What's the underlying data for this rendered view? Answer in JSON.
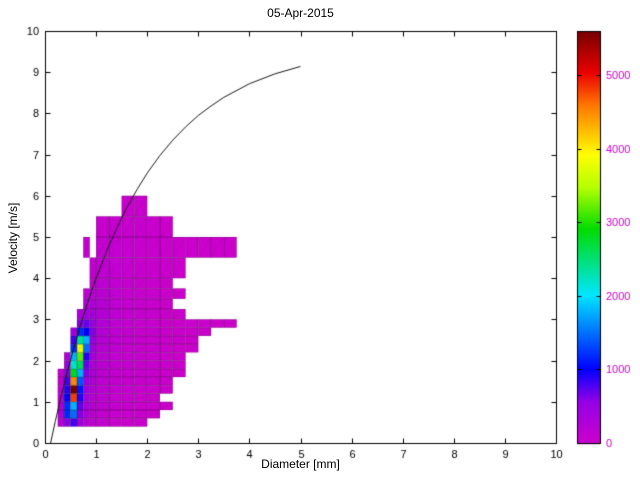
{
  "chart_data": {
    "type": "heatmap",
    "title": "05-Apr-2015",
    "xlabel": "Diameter [mm]",
    "ylabel": "Velocity [m/s]",
    "xlim": [
      0,
      10
    ],
    "ylim": [
      0,
      10
    ],
    "xticks": [
      0,
      1,
      2,
      3,
      4,
      5,
      6,
      7,
      8,
      9,
      10
    ],
    "yticks": [
      0,
      1,
      2,
      3,
      4,
      5,
      6,
      7,
      8,
      9,
      10
    ],
    "grid": false,
    "legend": "none",
    "colorbar": {
      "position": "right",
      "vmin": 0,
      "vmax": 5600,
      "ticks": [
        0,
        1000,
        2000,
        3000,
        4000,
        5000
      ],
      "colormap_stops": [
        [
          0.0,
          204,
          0,
          204
        ],
        [
          0.1,
          150,
          0,
          230
        ],
        [
          0.18,
          0,
          0,
          255
        ],
        [
          0.36,
          0,
          230,
          255
        ],
        [
          0.52,
          0,
          220,
          0
        ],
        [
          0.62,
          180,
          255,
          0
        ],
        [
          0.7,
          255,
          255,
          0
        ],
        [
          0.82,
          255,
          120,
          0
        ],
        [
          0.9,
          235,
          0,
          0
        ],
        [
          1.0,
          120,
          0,
          0
        ]
      ],
      "cell_edge_color": "rgba(0,0,0,0.35)",
      "cell_diag_color": "rgba(0,0,0,0.12)"
    },
    "heatmap": {
      "x_edges": [
        0.25,
        0.375,
        0.5,
        0.625,
        0.75,
        0.875,
        1.0,
        1.25,
        1.5,
        1.75,
        2.0,
        2.25,
        2.5,
        2.75,
        3.0,
        3.25,
        3.5,
        3.75
      ],
      "y_edges": [
        0.4,
        0.6,
        0.8,
        1.0,
        1.2,
        1.4,
        1.6,
        1.8,
        2.0,
        2.2,
        2.4,
        2.6,
        2.8,
        3.0,
        3.25,
        3.5,
        3.75,
        4.0,
        4.5,
        5.0,
        5.5,
        6.0
      ],
      "counts": [
        [
          200,
          600,
          800,
          400,
          200,
          120,
          80,
          40,
          25,
          15,
          0,
          0,
          0,
          0,
          0,
          0,
          0
        ],
        [
          300,
          1200,
          1500,
          600,
          300,
          150,
          100,
          60,
          35,
          20,
          12,
          0,
          0,
          0,
          0,
          0,
          0
        ],
        [
          250,
          1200,
          1800,
          700,
          350,
          180,
          120,
          70,
          40,
          25,
          15,
          10,
          0,
          0,
          0,
          0,
          0
        ],
        [
          200,
          1000,
          4800,
          900,
          400,
          200,
          130,
          80,
          50,
          30,
          18,
          0,
          0,
          0,
          0,
          0,
          0
        ],
        [
          150,
          900,
          5600,
          1100,
          450,
          220,
          140,
          90,
          55,
          35,
          20,
          12,
          0,
          0,
          0,
          0,
          0
        ],
        [
          100,
          800,
          4500,
          1400,
          500,
          250,
          150,
          95,
          60,
          40,
          25,
          14,
          0,
          0,
          0,
          0,
          0
        ],
        [
          60,
          600,
          2800,
          1800,
          600,
          280,
          160,
          100,
          65,
          45,
          30,
          16,
          10,
          0,
          0,
          0,
          0
        ],
        [
          0,
          400,
          2200,
          2600,
          700,
          300,
          170,
          105,
          70,
          48,
          32,
          20,
          12,
          0,
          0,
          0,
          0
        ],
        [
          0,
          250,
          1800,
          3200,
          900,
          350,
          180,
          110,
          72,
          50,
          34,
          22,
          13,
          0,
          0,
          0,
          0
        ],
        [
          0,
          0,
          1200,
          3800,
          1500,
          400,
          200,
          120,
          75,
          52,
          35,
          24,
          15,
          10,
          0,
          0,
          0
        ],
        [
          0,
          0,
          800,
          2400,
          1800,
          500,
          220,
          130,
          80,
          55,
          36,
          25,
          16,
          10,
          0,
          0,
          0
        ],
        [
          0,
          0,
          400,
          1200,
          1000,
          600,
          240,
          140,
          85,
          57,
          38,
          26,
          17,
          12,
          8,
          0,
          0
        ],
        [
          0,
          0,
          0,
          600,
          700,
          500,
          260,
          150,
          90,
          60,
          40,
          27,
          18,
          12,
          10,
          8,
          6
        ],
        [
          0,
          0,
          0,
          300,
          400,
          350,
          250,
          140,
          85,
          58,
          38,
          26,
          17,
          0,
          0,
          0,
          0
        ],
        [
          0,
          0,
          0,
          0,
          250,
          280,
          220,
          130,
          80,
          55,
          36,
          24,
          0,
          0,
          0,
          0,
          0
        ],
        [
          0,
          0,
          0,
          0,
          150,
          200,
          180,
          120,
          75,
          50,
          33,
          22,
          14,
          0,
          0,
          0,
          0
        ],
        [
          0,
          0,
          0,
          0,
          0,
          120,
          150,
          110,
          70,
          48,
          30,
          20,
          0,
          0,
          0,
          0,
          0
        ],
        [
          0,
          0,
          0,
          0,
          0,
          80,
          120,
          100,
          65,
          45,
          28,
          18,
          12,
          0,
          0,
          0,
          0
        ],
        [
          0,
          0,
          0,
          0,
          60,
          0,
          80,
          90,
          60,
          42,
          26,
          17,
          11,
          9,
          8,
          7,
          6
        ],
        [
          0,
          0,
          0,
          0,
          0,
          0,
          50,
          70,
          50,
          38,
          22,
          14,
          0,
          0,
          0,
          0,
          0
        ],
        [
          0,
          0,
          0,
          0,
          0,
          0,
          0,
          0,
          40,
          30,
          0,
          0,
          0,
          0,
          0,
          0,
          0
        ]
      ]
    },
    "curve": {
      "name": "terminal-velocity-curve",
      "color": "#1a1a1a",
      "x": [
        0.11,
        0.2,
        0.3,
        0.4,
        0.5,
        0.6,
        0.7,
        0.8,
        0.9,
        1.0,
        1.2,
        1.4,
        1.6,
        1.8,
        2.0,
        2.25,
        2.5,
        2.75,
        3.0,
        3.25,
        3.5,
        4.0,
        4.5,
        5.0
      ],
      "y": [
        0,
        0.52,
        1.05,
        1.55,
        2.02,
        2.46,
        2.88,
        3.28,
        3.65,
        4.0,
        4.64,
        5.2,
        5.71,
        6.15,
        6.55,
        6.98,
        7.35,
        7.67,
        7.95,
        8.18,
        8.39,
        8.72,
        8.96,
        9.14
      ]
    },
    "axis_color": "#000000",
    "background": "#ffffff"
  }
}
